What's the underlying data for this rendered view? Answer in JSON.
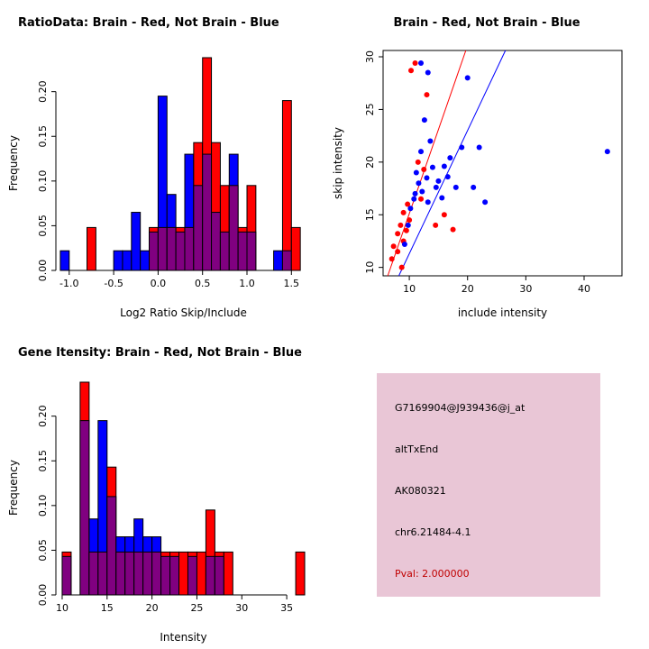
{
  "figure": {
    "background": "#ffffff"
  },
  "chart_data": [
    {
      "id": "ratio-histogram",
      "type": "bar",
      "subtype": "overlaid-histogram",
      "title": "RatioData: Brain - Red, Not Brain - Blue",
      "xlabel": "Log2 Ratio Skip/Include",
      "ylabel": "Frequency",
      "xlim": [
        -1.15,
        1.72
      ],
      "ylim": [
        0,
        0.24
      ],
      "xticks": [
        -1.0,
        -0.5,
        0.0,
        0.5,
        1.0,
        1.5
      ],
      "xtick_labels": [
        "-1.0",
        "-0.5",
        "0.0",
        "0.5",
        "1.0",
        "1.5"
      ],
      "yticks": [
        0,
        0.05,
        0.1,
        0.15,
        0.2
      ],
      "ytick_labels": [
        "0.00",
        "0.05",
        "0.10",
        "0.15",
        "0.20"
      ],
      "bin_width": 0.1,
      "bin_centers": [
        -1.05,
        -0.95,
        -0.85,
        -0.75,
        -0.65,
        -0.55,
        -0.45,
        -0.35,
        -0.25,
        -0.15,
        -0.05,
        0.05,
        0.15,
        0.25,
        0.35,
        0.45,
        0.55,
        0.65,
        0.75,
        0.85,
        0.95,
        1.05,
        1.15,
        1.25,
        1.35,
        1.45,
        1.55,
        1.65
      ],
      "series": [
        {
          "name": "Brain",
          "color": "#FF0000",
          "values": [
            0,
            0,
            0,
            0.048,
            0,
            0,
            0,
            0,
            0,
            0,
            0.048,
            0.048,
            0.048,
            0.048,
            0.048,
            0.143,
            0.238,
            0.143,
            0.095,
            0.095,
            0.048,
            0.095,
            0,
            0,
            0,
            0.19,
            0.048,
            0
          ]
        },
        {
          "name": "Not Brain",
          "color": "#0000FF",
          "values": [
            0.022,
            0,
            0,
            0,
            0,
            0,
            0.022,
            0.022,
            0.065,
            0.022,
            0.043,
            0.195,
            0.085,
            0.043,
            0.13,
            0.095,
            0.13,
            0.065,
            0.043,
            0.13,
            0.043,
            0.043,
            0,
            0,
            0.022,
            0.022,
            0,
            0
          ]
        }
      ],
      "overlap_color": "#800080",
      "axis_color": "#000000"
    },
    {
      "id": "intensity-scatter",
      "type": "scatter",
      "title": "Brain - Red, Not Brain - Blue",
      "xlabel": "include intensity",
      "ylabel": "skip intensity",
      "xlim": [
        5.5,
        46.5
      ],
      "ylim": [
        9.2,
        30.6
      ],
      "xticks": [
        10,
        20,
        30,
        40
      ],
      "yticks": [
        10,
        15,
        20,
        25,
        30
      ],
      "series": [
        {
          "name": "Brain",
          "color": "#FF0000",
          "points": [
            [
              7,
              10.8
            ],
            [
              7.3,
              12
            ],
            [
              8,
              11.5
            ],
            [
              8,
              13.2
            ],
            [
              8.5,
              14
            ],
            [
              8.7,
              10
            ],
            [
              9,
              12.5
            ],
            [
              9,
              15.2
            ],
            [
              9.5,
              13.5
            ],
            [
              9.7,
              16
            ],
            [
              10,
              14.5
            ],
            [
              10.3,
              28.7
            ],
            [
              11,
              29.4
            ],
            [
              11.5,
              20
            ],
            [
              12,
              16.5
            ],
            [
              12.5,
              19.3
            ],
            [
              13,
              26.4
            ],
            [
              14.5,
              14
            ],
            [
              16,
              15
            ],
            [
              17.5,
              13.6
            ]
          ]
        },
        {
          "name": "Not Brain",
          "color": "#0000FF",
          "points": [
            [
              9.2,
              12.2
            ],
            [
              9.8,
              14
            ],
            [
              10.2,
              15.6
            ],
            [
              10.8,
              16.5
            ],
            [
              11,
              17
            ],
            [
              11.2,
              19
            ],
            [
              11.6,
              18
            ],
            [
              12,
              21
            ],
            [
              12.2,
              17.2
            ],
            [
              12,
              29.4
            ],
            [
              12.6,
              24
            ],
            [
              13,
              18.5
            ],
            [
              13.2,
              16.2
            ],
            [
              13.2,
              28.5
            ],
            [
              13.6,
              22
            ],
            [
              14,
              19.5
            ],
            [
              14.6,
              17.6
            ],
            [
              15,
              18.2
            ],
            [
              15.6,
              16.6
            ],
            [
              16,
              19.6
            ],
            [
              16.6,
              18.6
            ],
            [
              17,
              20.4
            ],
            [
              18,
              17.6
            ],
            [
              19,
              21.4
            ],
            [
              20,
              28
            ],
            [
              21,
              17.6
            ],
            [
              22,
              21.4
            ],
            [
              23,
              16.2
            ],
            [
              44,
              21
            ]
          ]
        }
      ],
      "lines": [
        {
          "name": "brain-fit-line",
          "color": "#FF0000",
          "x1": 6.3,
          "y1": 9.2,
          "x2": 19.7,
          "y2": 30.6
        },
        {
          "name": "notbrain-fit-line",
          "color": "#0000FF",
          "x1": 8.2,
          "y1": 9.2,
          "x2": 26.5,
          "y2": 30.6
        }
      ],
      "point_radius": 3
    },
    {
      "id": "gene-intensity-histogram",
      "type": "bar",
      "subtype": "overlaid-histogram",
      "title": "Gene Itensity: Brain - Red, Not Brain - Blue",
      "xlabel": "Intensity",
      "ylabel": "Frequency",
      "xlim": [
        9.3,
        37.7
      ],
      "ylim": [
        0,
        0.24
      ],
      "xticks": [
        10,
        15,
        20,
        25,
        30,
        35
      ],
      "xtick_labels": [
        "10",
        "15",
        "20",
        "25",
        "30",
        "35"
      ],
      "yticks": [
        0,
        0.05,
        0.1,
        0.15,
        0.2
      ],
      "ytick_labels": [
        "0.00",
        "0.05",
        "0.10",
        "0.15",
        "0.20"
      ],
      "bin_width": 1,
      "bin_centers": [
        10.5,
        11.5,
        12.5,
        13.5,
        14.5,
        15.5,
        16.5,
        17.5,
        18.5,
        19.5,
        20.5,
        21.5,
        22.5,
        23.5,
        24.5,
        25.5,
        26.5,
        27.5,
        28.5,
        29.5,
        30.5,
        31.5,
        32.5,
        33.5,
        34.5,
        35.5,
        36.5
      ],
      "series": [
        {
          "name": "Brain",
          "color": "#FF0000",
          "values": [
            0.048,
            0,
            0.238,
            0.048,
            0.048,
            0.143,
            0.048,
            0.048,
            0.048,
            0.048,
            0.048,
            0.048,
            0.048,
            0.048,
            0.048,
            0.048,
            0.095,
            0.048,
            0.048,
            0,
            0,
            0,
            0,
            0,
            0,
            0,
            0.048
          ]
        },
        {
          "name": "Not Brain",
          "color": "#0000FF",
          "values": [
            0.043,
            0,
            0.195,
            0.085,
            0.195,
            0.11,
            0.065,
            0.065,
            0.085,
            0.065,
            0.065,
            0.043,
            0.043,
            0,
            0.043,
            0,
            0.043,
            0.043,
            0,
            0,
            0,
            0,
            0,
            0,
            0,
            0,
            0
          ]
        }
      ],
      "overlap_color": "#800080",
      "axis_color": "#000000"
    }
  ],
  "info_box": {
    "bg": "#E9C6D6",
    "lines": [
      {
        "text": "G7169904@J939436@j_at",
        "color": "#000000"
      },
      {
        "text": "altTxEnd",
        "color": "#000000"
      },
      {
        "text": "AK080321",
        "color": "#000000"
      },
      {
        "text": "chr6.21484-4.1",
        "color": "#000000"
      },
      {
        "text": "Pval: 2.000000",
        "color": "#C00000"
      }
    ]
  }
}
